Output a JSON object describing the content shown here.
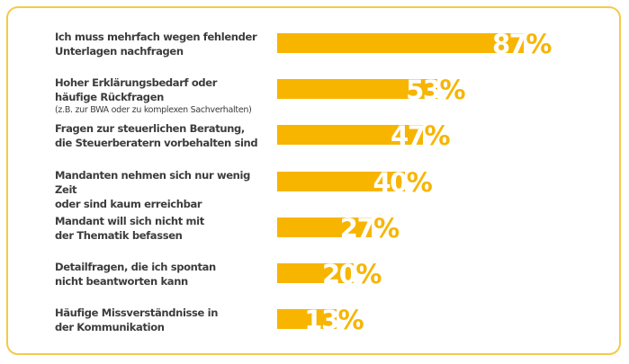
{
  "chart_data": {
    "type": "bar",
    "orientation": "horizontal",
    "title": "",
    "xlabel": "",
    "ylabel": "",
    "unit": "%",
    "xlim": [
      0,
      100
    ],
    "grid": false,
    "legend": "none",
    "bar_color": "#f7b500",
    "frame_color": "#f7c948",
    "label_color": "#3c3c3c",
    "categories": [
      {
        "line1": "Ich muss mehrfach wegen fehlender",
        "line2": "Unterlagen nachfragen",
        "note": ""
      },
      {
        "line1": "Hoher Erklärungsbedarf oder",
        "line2": "häufige Rückfragen",
        "note": "(z.B. zur BWA oder zu komplexen Sachverhalten)"
      },
      {
        "line1": "Fragen zur steuerlichen Beratung,",
        "line2": "die Steuerberatern vorbehalten sind",
        "note": ""
      },
      {
        "line1": "Mandanten nehmen sich nur wenig Zeit",
        "line2": "oder sind kaum erreichbar",
        "note": ""
      },
      {
        "line1": "Mandant will sich nicht mit",
        "line2": "der Thematik befassen",
        "note": ""
      },
      {
        "line1": "Detailfragen, die ich spontan",
        "line2": "nicht beantworten kann",
        "note": ""
      },
      {
        "line1": "Häufige Missverständnisse in",
        "line2": "der Kommunikation",
        "note": ""
      }
    ],
    "values": [
      87,
      53,
      47,
      40,
      27,
      20,
      13
    ],
    "value_labels": [
      "87",
      "53",
      "47",
      "40",
      "27",
      "20",
      "13"
    ]
  }
}
